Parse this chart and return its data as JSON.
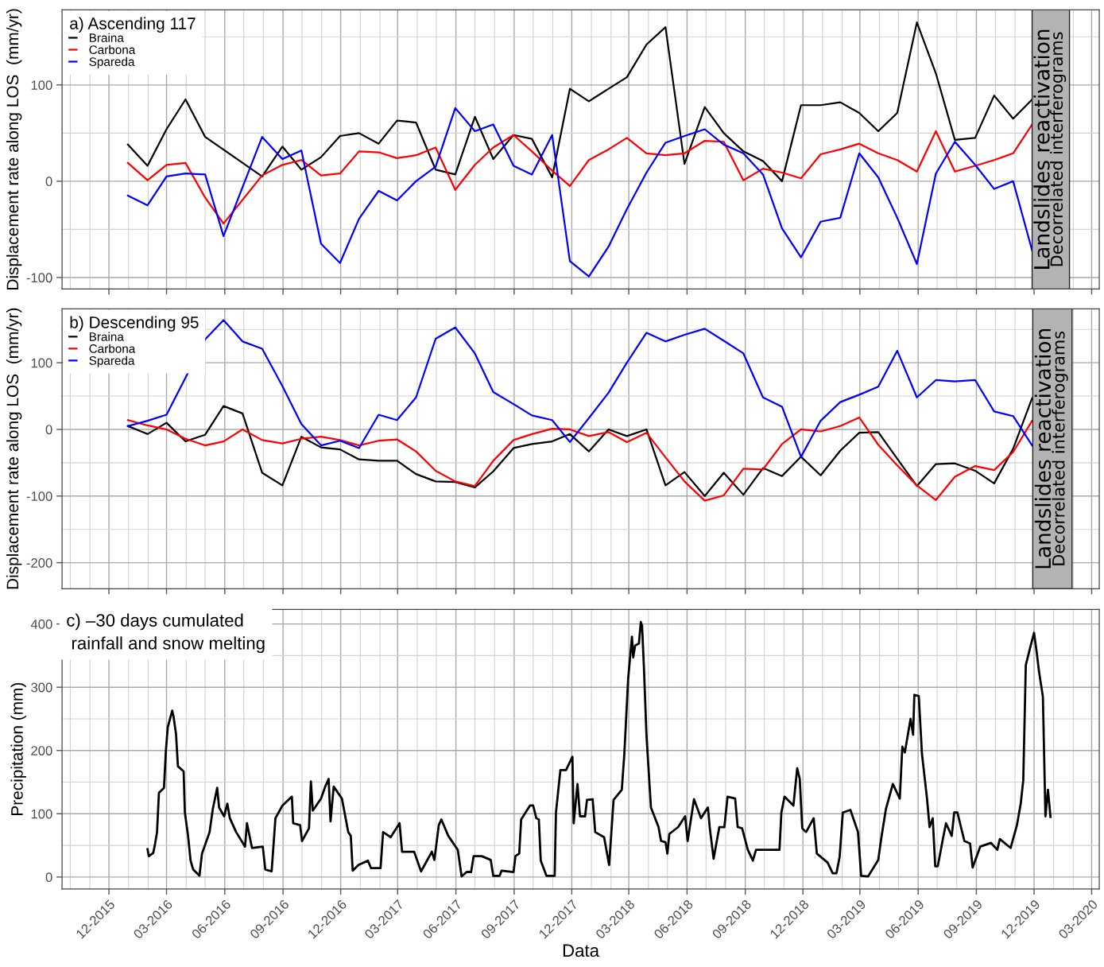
{
  "chart_data": [
    {
      "type": "line",
      "ylabel": "Displacement rate along LOS  (mm/yr)",
      "legend_title": "a) Ascending 117",
      "legend": "top left",
      "grid": true,
      "tick_labels": "y",
      "line_style": "solid",
      "xlim": [
        "2015-09-18",
        "2020-03-13"
      ],
      "ylim": [
        -112,
        178
      ],
      "yticks": [
        -100,
        {
          "value": -50,
          "label": null
        },
        0,
        {
          "value": 50,
          "label": null
        },
        100,
        {
          "value": 150,
          "label": null
        }
      ],
      "xticks": [
        {
          "value": "2015-10-01",
          "label": null
        },
        {
          "value": "2015-11-01",
          "label": null
        },
        "2015-12-01",
        {
          "value": "2016-01-01",
          "label": null
        },
        {
          "value": "2016-02-01",
          "label": null
        },
        "2016-03-01",
        {
          "value": "2016-04-01",
          "label": null
        },
        {
          "value": "2016-05-01",
          "label": null
        },
        "2016-06-01",
        {
          "value": "2016-07-01",
          "label": null
        },
        {
          "value": "2016-08-01",
          "label": null
        },
        "2016-09-01",
        {
          "value": "2016-10-01",
          "label": null
        },
        {
          "value": "2016-11-01",
          "label": null
        },
        "2016-12-01",
        {
          "value": "2017-01-01",
          "label": null
        },
        {
          "value": "2017-02-01",
          "label": null
        },
        "2017-03-01",
        {
          "value": "2017-04-01",
          "label": null
        },
        {
          "value": "2017-05-01",
          "label": null
        },
        "2017-06-01",
        {
          "value": "2017-07-01",
          "label": null
        },
        {
          "value": "2017-08-01",
          "label": null
        },
        "2017-09-01",
        {
          "value": "2017-10-01",
          "label": null
        },
        {
          "value": "2017-11-01",
          "label": null
        },
        "2017-12-01",
        {
          "value": "2018-01-01",
          "label": null
        },
        {
          "value": "2018-02-01",
          "label": null
        },
        "2018-03-01",
        {
          "value": "2018-04-01",
          "label": null
        },
        {
          "value": "2018-05-01",
          "label": null
        },
        "2018-06-01",
        {
          "value": "2018-07-01",
          "label": null
        },
        {
          "value": "2018-08-01",
          "label": null
        },
        "2018-09-01",
        {
          "value": "2018-10-01",
          "label": null
        },
        {
          "value": "2018-11-01",
          "label": null
        },
        "2018-12-01",
        {
          "value": "2019-01-01",
          "label": null
        },
        {
          "value": "2019-02-01",
          "label": null
        },
        "2019-03-01",
        {
          "value": "2019-04-01",
          "label": null
        },
        {
          "value": "2019-05-01",
          "label": null
        },
        "2019-06-01",
        {
          "value": "2019-07-01",
          "label": null
        },
        {
          "value": "2019-08-01",
          "label": null
        },
        "2019-09-01",
        {
          "value": "2019-10-01",
          "label": null
        },
        {
          "value": "2019-11-01",
          "label": null
        },
        "2019-12-01",
        {
          "value": "2020-02-01",
          "label": null
        },
        "2020-03-01"
      ],
      "bands": [
        {
          "axis": "x",
          "from": "2019-11-28",
          "to": "2020-01-26",
          "label": "Landslides reactivation\nDecorrelated interferograms",
          "color": "#b3b3b3"
        }
      ],
      "series": [
        {
          "name": "Braina",
          "color": "#000000",
          "x": [
            "2015-12-31",
            "2016-01-31",
            "2016-03-01",
            "2016-03-31",
            "2016-05-01",
            "2016-07-30",
            "2016-08-31",
            "2016-09-30",
            "2016-10-31",
            "2016-11-30",
            "2016-12-30",
            "2017-01-30",
            "2017-02-28",
            "2017-03-30",
            "2017-04-30",
            "2017-05-31",
            "2017-07-01",
            "2017-07-30",
            "2017-08-31",
            "2017-09-29",
            "2017-10-31",
            "2017-11-28",
            "2017-12-28",
            "2018-01-28",
            "2018-02-26",
            "2018-03-29",
            "2018-04-28",
            "2018-05-28",
            "2018-06-29",
            "2018-07-29",
            "2018-08-29",
            "2018-09-29",
            "2018-10-29",
            "2018-11-28",
            "2018-12-29",
            "2019-01-29",
            "2019-02-28",
            "2019-03-30",
            "2019-04-29",
            "2019-05-30",
            "2019-06-29",
            "2019-07-29",
            "2019-08-30",
            "2019-09-29",
            "2019-10-29",
            "2019-11-28"
          ],
          "values": [
            38,
            16,
            54,
            85,
            46,
            5,
            36,
            12,
            25,
            47,
            50,
            39,
            63,
            61,
            12,
            7,
            67,
            23,
            48,
            44,
            4,
            96,
            83,
            96,
            108,
            142,
            160,
            18,
            77,
            50,
            31,
            21,
            0,
            79,
            79,
            82,
            71,
            52,
            71,
            165,
            112,
            43,
            45,
            89,
            65,
            85
          ]
        },
        {
          "name": "Carbona",
          "color": "#ff0000",
          "x": [
            "2015-12-31",
            "2016-01-31",
            "2016-03-01",
            "2016-03-31",
            "2016-05-01",
            "2016-05-30",
            "2016-07-30",
            "2016-08-31",
            "2016-09-30",
            "2016-10-31",
            "2016-11-30",
            "2016-12-30",
            "2017-01-30",
            "2017-02-28",
            "2017-03-30",
            "2017-04-30",
            "2017-05-31",
            "2017-07-01",
            "2017-07-30",
            "2017-08-31",
            "2017-09-29",
            "2017-10-31",
            "2017-11-28",
            "2017-12-28",
            "2018-01-28",
            "2018-02-26",
            "2018-03-29",
            "2018-04-28",
            "2018-05-28",
            "2018-06-29",
            "2018-07-29",
            "2018-08-29",
            "2018-09-29",
            "2018-10-29",
            "2018-11-28",
            "2018-12-29",
            "2019-01-29",
            "2019-02-28",
            "2019-03-30",
            "2019-04-29",
            "2019-05-30",
            "2019-06-29",
            "2019-07-29",
            "2019-08-30",
            "2019-09-29",
            "2019-10-29",
            "2019-11-28"
          ],
          "values": [
            19,
            1,
            17,
            19,
            -17,
            -44,
            6,
            17,
            22,
            6,
            8,
            31,
            30,
            24,
            27,
            35,
            -9,
            17,
            35,
            48,
            31,
            11,
            -5,
            22,
            33,
            45,
            29,
            27,
            29,
            42,
            41,
            1,
            13,
            9,
            3,
            28,
            33,
            39,
            29,
            22,
            10,
            52,
            10,
            16,
            22,
            29,
            59
          ]
        },
        {
          "name": "Spareda",
          "color": "#0000ff",
          "x": [
            "2015-12-31",
            "2016-01-31",
            "2016-03-01",
            "2016-03-31",
            "2016-05-01",
            "2016-05-30",
            "2016-07-30",
            "2016-08-31",
            "2016-09-30",
            "2016-10-31",
            "2016-11-30",
            "2016-12-30",
            "2017-01-30",
            "2017-02-28",
            "2017-03-30",
            "2017-04-30",
            "2017-05-31",
            "2017-07-01",
            "2017-07-30",
            "2017-08-31",
            "2017-09-29",
            "2017-10-31",
            "2017-11-28",
            "2017-12-28",
            "2018-01-28",
            "2018-02-26",
            "2018-03-29",
            "2018-04-28",
            "2018-05-28",
            "2018-06-29",
            "2018-07-29",
            "2018-08-29",
            "2018-09-29",
            "2018-10-29",
            "2018-11-28",
            "2018-12-29",
            "2019-01-29",
            "2019-02-28",
            "2019-03-30",
            "2019-04-29",
            "2019-05-30",
            "2019-06-29",
            "2019-07-29",
            "2019-08-30",
            "2019-09-29",
            "2019-10-29",
            "2019-11-28"
          ],
          "values": [
            -15,
            -25,
            5,
            8,
            7,
            -57,
            46,
            23,
            32,
            -65,
            -85,
            -39,
            -10,
            -20,
            0,
            15,
            76,
            52,
            59,
            16,
            7,
            48,
            -83,
            -99,
            -68,
            -29,
            9,
            40,
            47,
            54,
            38,
            29,
            7,
            -49,
            -79,
            -42,
            -38,
            29,
            4,
            -38,
            -86,
            8,
            41,
            17,
            -8,
            0,
            -72
          ]
        }
      ]
    },
    {
      "type": "line",
      "ylabel": "Displacement rate along LOS  (mm/yr)",
      "legend_title": "b) Descending 95",
      "legend": "top left",
      "grid": true,
      "tick_labels": "y",
      "line_style": "solid",
      "xlim": [
        "2015-09-18",
        "2020-03-13"
      ],
      "ylim": [
        -239,
        181
      ],
      "yticks": [
        -200,
        {
          "value": -150,
          "label": null
        },
        -100,
        {
          "value": -50,
          "label": null
        },
        0,
        {
          "value": 50,
          "label": null
        },
        100,
        {
          "value": 150,
          "label": null
        }
      ],
      "xticks": [
        {
          "value": "2015-10-01",
          "label": null
        },
        {
          "value": "2015-11-01",
          "label": null
        },
        "2015-12-01",
        {
          "value": "2016-01-01",
          "label": null
        },
        {
          "value": "2016-02-01",
          "label": null
        },
        "2016-03-01",
        {
          "value": "2016-04-01",
          "label": null
        },
        {
          "value": "2016-05-01",
          "label": null
        },
        "2016-06-01",
        {
          "value": "2016-07-01",
          "label": null
        },
        {
          "value": "2016-08-01",
          "label": null
        },
        "2016-09-01",
        {
          "value": "2016-10-01",
          "label": null
        },
        {
          "value": "2016-11-01",
          "label": null
        },
        "2016-12-01",
        {
          "value": "2017-01-01",
          "label": null
        },
        {
          "value": "2017-02-01",
          "label": null
        },
        "2017-03-01",
        {
          "value": "2017-04-01",
          "label": null
        },
        {
          "value": "2017-05-01",
          "label": null
        },
        "2017-06-01",
        {
          "value": "2017-07-01",
          "label": null
        },
        {
          "value": "2017-08-01",
          "label": null
        },
        "2017-09-01",
        {
          "value": "2017-10-01",
          "label": null
        },
        {
          "value": "2017-11-01",
          "label": null
        },
        "2017-12-01",
        {
          "value": "2018-01-01",
          "label": null
        },
        {
          "value": "2018-02-01",
          "label": null
        },
        "2018-03-01",
        {
          "value": "2018-04-01",
          "label": null
        },
        {
          "value": "2018-05-01",
          "label": null
        },
        "2018-06-01",
        {
          "value": "2018-07-01",
          "label": null
        },
        {
          "value": "2018-08-01",
          "label": null
        },
        "2018-09-01",
        {
          "value": "2018-10-01",
          "label": null
        },
        {
          "value": "2018-11-01",
          "label": null
        },
        "2018-12-01",
        {
          "value": "2019-01-01",
          "label": null
        },
        {
          "value": "2019-02-01",
          "label": null
        },
        "2019-03-01",
        {
          "value": "2019-04-01",
          "label": null
        },
        {
          "value": "2019-05-01",
          "label": null
        },
        "2019-06-01",
        {
          "value": "2019-07-01",
          "label": null
        },
        {
          "value": "2019-08-01",
          "label": null
        },
        "2019-09-01",
        {
          "value": "2019-10-01",
          "label": null
        },
        {
          "value": "2019-11-01",
          "label": null
        },
        "2019-12-01",
        {
          "value": "2020-02-01",
          "label": null
        },
        "2020-03-01"
      ],
      "bands": [
        {
          "axis": "x",
          "from": "2019-11-29",
          "to": "2020-01-30",
          "label": "Landslides reactivation\nDecorrelated interferograms",
          "color": "#b3b3b3"
        }
      ],
      "series": [
        {
          "name": "Braina",
          "color": "#000000",
          "x": [
            "2015-12-31",
            "2016-01-31",
            "2016-03-01",
            "2016-03-31",
            "2016-05-01",
            "2016-05-30",
            "2016-06-29",
            "2016-07-30",
            "2016-08-31",
            "2016-09-30",
            "2016-10-31",
            "2016-11-30",
            "2016-12-30",
            "2017-01-30",
            "2017-02-28",
            "2017-03-30",
            "2017-04-30",
            "2017-05-31",
            "2017-07-01",
            "2017-07-30",
            "2017-08-31",
            "2017-09-29",
            "2017-10-31",
            "2017-11-28",
            "2017-12-28",
            "2018-01-28",
            "2018-02-26",
            "2018-03-29",
            "2018-04-28",
            "2018-05-28",
            "2018-06-29",
            "2018-07-29",
            "2018-08-29",
            "2018-09-29",
            "2018-10-29",
            "2018-11-28",
            "2018-12-29",
            "2019-01-29",
            "2019-02-28",
            "2019-03-30",
            "2019-04-29",
            "2019-05-30",
            "2019-06-29",
            "2019-07-29",
            "2019-08-30",
            "2019-09-29",
            "2019-10-29",
            "2019-11-28"
          ],
          "values": [
            5,
            -7,
            10,
            -18,
            -8,
            35,
            24,
            -65,
            -84,
            -11,
            -27,
            -30,
            -45,
            -47,
            -47,
            -67,
            -78,
            -79,
            -87,
            -63,
            -28,
            -22,
            -18,
            -7,
            -33,
            0,
            -10,
            0,
            -84,
            -64,
            -100,
            -65,
            -98,
            -58,
            -70,
            -41,
            -69,
            -32,
            -5,
            -4,
            -44,
            -85,
            -52,
            -51,
            -62,
            -81,
            -29,
            47
          ]
        },
        {
          "name": "Carbona",
          "color": "#ff0000",
          "x": [
            "2015-12-31",
            "2016-01-31",
            "2016-03-01",
            "2016-03-31",
            "2016-05-01",
            "2016-05-30",
            "2016-06-29",
            "2016-07-30",
            "2016-08-31",
            "2016-09-30",
            "2016-10-31",
            "2016-11-30",
            "2016-12-30",
            "2017-01-30",
            "2017-02-28",
            "2017-03-30",
            "2017-04-30",
            "2017-05-31",
            "2017-07-01",
            "2017-07-30",
            "2017-08-31",
            "2017-09-29",
            "2017-10-31",
            "2017-11-28",
            "2017-12-28",
            "2018-01-28",
            "2018-02-26",
            "2018-03-29",
            "2018-04-28",
            "2018-05-28",
            "2018-06-29",
            "2018-07-29",
            "2018-08-29",
            "2018-09-29",
            "2018-10-29",
            "2018-11-28",
            "2018-12-29",
            "2019-01-29",
            "2019-02-28",
            "2019-03-30",
            "2019-04-29",
            "2019-05-30",
            "2019-06-29",
            "2019-07-29",
            "2019-08-30",
            "2019-09-29",
            "2019-10-29",
            "2019-11-28"
          ],
          "values": [
            14,
            6,
            0,
            -14,
            -24,
            -18,
            0,
            -16,
            -21,
            -14,
            -11,
            -16,
            -24,
            -17,
            -15,
            -33,
            -62,
            -78,
            -85,
            -47,
            -16,
            -7,
            1,
            0,
            -10,
            -4,
            -19,
            -5,
            -42,
            -78,
            -107,
            -99,
            -59,
            -60,
            -22,
            0,
            -3,
            5,
            18,
            -23,
            -54,
            -84,
            -106,
            -71,
            -55,
            -61,
            -34,
            13
          ]
        },
        {
          "name": "Spareda",
          "color": "#0000ff",
          "x": [
            "2015-12-31",
            "2016-01-31",
            "2016-03-01",
            "2016-05-01",
            "2016-05-30",
            "2016-06-29",
            "2016-07-30",
            "2016-08-31",
            "2016-09-30",
            "2016-10-31",
            "2016-11-30",
            "2016-12-30",
            "2017-01-30",
            "2017-02-28",
            "2017-03-30",
            "2017-04-30",
            "2017-05-31",
            "2017-07-01",
            "2017-07-30",
            "2017-08-31",
            "2017-09-29",
            "2017-10-31",
            "2017-11-28",
            "2017-12-28",
            "2018-01-28",
            "2018-02-26",
            "2018-03-29",
            "2018-04-28",
            "2018-05-28",
            "2018-06-29",
            "2018-07-29",
            "2018-08-29",
            "2018-09-29",
            "2018-10-29",
            "2018-11-28",
            "2018-12-29",
            "2019-01-29",
            "2019-02-28",
            "2019-03-30",
            "2019-04-29",
            "2019-05-30",
            "2019-06-29",
            "2019-07-29",
            "2019-08-30",
            "2019-09-29",
            "2019-10-29",
            "2019-11-28"
          ],
          "values": [
            5,
            13,
            22,
            135,
            164,
            132,
            121,
            65,
            8,
            -24,
            -17,
            -28,
            22,
            14,
            48,
            136,
            153,
            114,
            56,
            38,
            21,
            14,
            -19,
            17,
            55,
            100,
            145,
            132,
            142,
            151,
            133,
            114,
            48,
            34,
            -41,
            13,
            41,
            52,
            64,
            118,
            48,
            74,
            72,
            74,
            27,
            20,
            -24
          ]
        }
      ]
    },
    {
      "type": "line",
      "title": "c) –30 days cumulated\n rainfall and snow melting",
      "ylabel": "Precipitation (mm)",
      "xlabel": "Data",
      "grid": true,
      "line_style": "solid",
      "xlim": [
        "2015-09-18",
        "2020-03-13"
      ],
      "ylim": [
        -19,
        423
      ],
      "yticks": [
        0,
        {
          "value": 50,
          "label": null
        },
        100,
        {
          "value": 150,
          "label": null
        },
        200,
        {
          "value": 250,
          "label": null
        },
        300,
        {
          "value": 350,
          "label": null
        },
        400
      ],
      "xticks": [
        {
          "value": "2015-10-01",
          "label": null
        },
        {
          "value": "2015-11-01",
          "label": null
        },
        {
          "value": "2015-12-01",
          "label": "12-2015"
        },
        {
          "value": "2016-01-01",
          "label": null
        },
        {
          "value": "2016-02-01",
          "label": null
        },
        {
          "value": "2016-03-01",
          "label": "03-2016"
        },
        {
          "value": "2016-04-01",
          "label": null
        },
        {
          "value": "2016-05-01",
          "label": null
        },
        {
          "value": "2016-06-01",
          "label": "06-2016"
        },
        {
          "value": "2016-07-01",
          "label": null
        },
        {
          "value": "2016-08-01",
          "label": null
        },
        {
          "value": "2016-09-01",
          "label": "09-2016"
        },
        {
          "value": "2016-10-01",
          "label": null
        },
        {
          "value": "2016-11-01",
          "label": null
        },
        {
          "value": "2016-12-01",
          "label": "12-2016"
        },
        {
          "value": "2017-01-01",
          "label": null
        },
        {
          "value": "2017-02-01",
          "label": null
        },
        {
          "value": "2017-03-01",
          "label": "03-2017"
        },
        {
          "value": "2017-04-01",
          "label": null
        },
        {
          "value": "2017-05-01",
          "label": null
        },
        {
          "value": "2017-06-01",
          "label": "06-2017"
        },
        {
          "value": "2017-07-01",
          "label": null
        },
        {
          "value": "2017-08-01",
          "label": null
        },
        {
          "value": "2017-09-01",
          "label": "09-2017"
        },
        {
          "value": "2017-10-01",
          "label": null
        },
        {
          "value": "2017-11-01",
          "label": null
        },
        {
          "value": "2017-12-01",
          "label": "12-2017"
        },
        {
          "value": "2018-01-01",
          "label": null
        },
        {
          "value": "2018-02-01",
          "label": null
        },
        {
          "value": "2018-03-01",
          "label": "03-2018"
        },
        {
          "value": "2018-04-01",
          "label": null
        },
        {
          "value": "2018-05-01",
          "label": null
        },
        {
          "value": "2018-06-01",
          "label": "06-2018"
        },
        {
          "value": "2018-07-01",
          "label": null
        },
        {
          "value": "2018-08-01",
          "label": null
        },
        {
          "value": "2018-09-01",
          "label": "09-2018"
        },
        {
          "value": "2018-10-01",
          "label": null
        },
        {
          "value": "2018-11-01",
          "label": null
        },
        {
          "value": "2018-12-01",
          "label": "12-2018"
        },
        {
          "value": "2019-01-01",
          "label": null
        },
        {
          "value": "2019-02-01",
          "label": null
        },
        {
          "value": "2019-03-01",
          "label": "03-2019"
        },
        {
          "value": "2019-04-01",
          "label": null
        },
        {
          "value": "2019-05-01",
          "label": null
        },
        {
          "value": "2019-06-01",
          "label": "06-2019"
        },
        {
          "value": "2019-07-01",
          "label": null
        },
        {
          "value": "2019-08-01",
          "label": null
        },
        {
          "value": "2019-09-01",
          "label": "09-2019"
        },
        {
          "value": "2019-10-01",
          "label": null
        },
        {
          "value": "2019-11-01",
          "label": null
        },
        {
          "value": "2019-12-01",
          "label": "12-2019"
        },
        {
          "value": "2020-01-01",
          "label": null
        },
        {
          "value": "2020-02-01",
          "label": null
        },
        {
          "value": "2020-03-01",
          "label": "03-2020"
        }
      ],
      "series": [
        {
          "color": "#000000",
          "x": [
            "2016-01-31",
            "2016-02-02",
            "2016-02-09",
            "2016-02-12",
            "2016-02-15",
            "2016-02-18",
            "2016-02-26",
            "2016-02-29",
            "2016-03-03",
            "2016-03-10",
            "2016-03-12",
            "2016-03-16",
            "2016-03-19",
            "2016-03-28",
            "2016-03-30",
            "2016-04-04",
            "2016-04-08",
            "2016-04-12",
            "2016-04-22",
            "2016-04-26",
            "2016-05-08",
            "2016-05-13",
            "2016-05-20",
            "2016-05-23",
            "2016-05-31",
            "2016-06-05",
            "2016-06-09",
            "2016-06-19",
            "2016-07-03",
            "2016-07-06",
            "2016-07-14",
            "2016-07-31",
            "2016-08-04",
            "2016-08-14",
            "2016-08-20",
            "2016-08-31",
            "2016-09-15",
            "2016-09-17",
            "2016-09-28",
            "2016-10-01",
            "2016-10-12",
            "2016-10-15",
            "2016-10-18",
            "2016-10-31",
            "2016-11-07",
            "2016-11-12",
            "2016-11-15",
            "2016-11-20",
            "2016-12-03",
            "2016-12-13",
            "2016-12-17",
            "2016-12-20",
            "2016-12-29",
            "2017-01-13",
            "2017-01-18",
            "2017-02-02",
            "2017-02-06",
            "2017-02-18",
            "2017-03-04",
            "2017-03-08",
            "2017-03-27",
            "2017-04-07",
            "2017-04-24",
            "2017-04-28",
            "2017-05-05",
            "2017-05-09",
            "2017-05-20",
            "2017-06-04",
            "2017-06-10",
            "2017-06-18",
            "2017-06-25",
            "2017-06-29",
            "2017-07-12",
            "2017-07-26",
            "2017-07-30",
            "2017-08-09",
            "2017-08-12",
            "2017-08-31",
            "2017-09-03",
            "2017-09-09",
            "2017-09-12",
            "2017-09-26",
            "2017-10-01",
            "2017-10-06",
            "2017-10-10",
            "2017-10-13",
            "2017-10-22",
            "2017-11-04",
            "2017-11-06",
            "2017-11-13",
            "2017-11-22",
            "2017-12-02",
            "2017-12-04",
            "2017-12-10",
            "2017-12-14",
            "2017-12-22",
            "2017-12-25",
            "2018-01-03",
            "2018-01-07",
            "2018-01-21",
            "2018-01-29",
            "2018-02-05",
            "2018-02-18",
            "2018-02-22",
            "2018-02-28",
            "2018-03-06",
            "2018-03-08",
            "2018-03-11",
            "2018-03-17",
            "2018-03-20",
            "2018-03-22",
            "2018-03-25",
            "2018-03-29",
            "2018-04-05",
            "2018-04-17",
            "2018-04-21",
            "2018-04-28",
            "2018-05-01",
            "2018-05-04",
            "2018-05-18",
            "2018-05-29",
            "2018-06-02",
            "2018-06-12",
            "2018-06-23",
            "2018-07-04",
            "2018-07-07",
            "2018-07-13",
            "2018-07-22",
            "2018-07-30",
            "2018-08-04",
            "2018-08-16",
            "2018-08-20",
            "2018-08-27",
            "2018-09-05",
            "2018-09-13",
            "2018-09-18",
            "2018-10-25",
            "2018-10-28",
            "2018-11-02",
            "2018-11-16",
            "2018-11-22",
            "2018-11-26",
            "2018-11-30",
            "2018-12-06",
            "2018-12-18",
            "2018-12-23",
            "2019-01-09",
            "2019-01-17",
            "2019-01-23",
            "2019-01-28",
            "2019-02-02",
            "2019-02-14",
            "2019-02-26",
            "2019-03-03",
            "2019-03-14",
            "2019-03-30",
            "2019-04-04",
            "2019-04-11",
            "2019-04-22",
            "2019-05-03",
            "2019-05-07",
            "2019-05-11",
            "2019-05-20",
            "2019-05-24",
            "2019-05-26",
            "2019-06-02",
            "2019-06-07",
            "2019-06-15",
            "2019-06-19",
            "2019-06-24",
            "2019-06-28",
            "2019-07-02",
            "2019-07-10",
            "2019-07-15",
            "2019-07-24",
            "2019-07-28",
            "2019-08-02",
            "2019-08-13",
            "2019-08-22",
            "2019-08-26",
            "2019-09-07",
            "2019-09-24",
            "2019-10-04",
            "2019-10-08",
            "2019-10-25",
            "2019-11-04",
            "2019-11-10",
            "2019-11-14",
            "2019-11-18",
            "2019-11-25",
            "2019-12-01",
            "2019-12-05",
            "2019-12-09",
            "2019-12-15",
            "2019-12-19",
            "2019-12-23",
            "2019-12-27"
          ],
          "values": [
            44,
            33,
            38,
            53,
            71,
            133,
            141,
            200,
            237,
            263,
            254,
            226,
            175,
            167,
            102,
            65,
            26,
            12,
            2,
            37,
            71,
            107,
            141,
            110,
            96,
            116,
            93,
            71,
            48,
            85,
            46,
            48,
            12,
            9,
            93,
            113,
            127,
            85,
            82,
            57,
            77,
            151,
            105,
            124,
            144,
            155,
            88,
            143,
            124,
            71,
            65,
            10,
            19,
            26,
            14,
            14,
            71,
            63,
            85,
            40,
            40,
            9,
            40,
            27,
            82,
            91,
            65,
            43,
            1,
            8,
            8,
            33,
            33,
            27,
            2,
            2,
            10,
            8,
            33,
            37,
            91,
            113,
            113,
            93,
            91,
            26,
            2,
            2,
            102,
            169,
            169,
            190,
            85,
            147,
            96,
            96,
            122,
            123,
            71,
            63,
            19,
            122,
            138,
            195,
            313,
            380,
            347,
            366,
            369,
            403,
            397,
            330,
            223,
            110,
            79,
            57,
            55,
            37,
            68,
            79,
            96,
            57,
            123,
            93,
            110,
            77,
            29,
            79,
            79,
            127,
            124,
            79,
            77,
            43,
            26,
            43,
            43,
            102,
            127,
            113,
            172,
            155,
            77,
            71,
            93,
            37,
            23,
            6,
            6,
            32,
            102,
            106,
            71,
            2,
            1,
            27,
            63,
            107,
            147,
            124,
            206,
            197,
            250,
            225,
            288,
            286,
            195,
            124,
            79,
            93,
            17,
            17,
            60,
            85,
            65,
            102,
            102,
            57,
            53,
            15,
            48,
            54,
            43,
            60,
            46,
            82,
            116,
            153,
            335,
            363,
            386,
            357,
            324,
            285,
            96,
            138,
            95
          ]
        }
      ]
    }
  ]
}
